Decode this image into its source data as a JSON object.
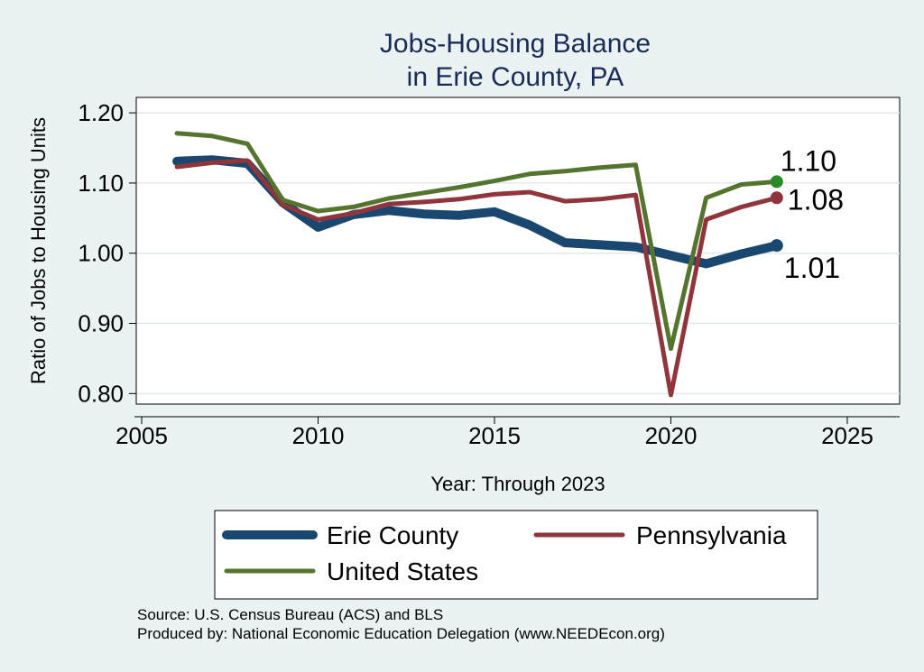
{
  "chart_data": {
    "type": "line",
    "title": [
      "Jobs-Housing Balance",
      "in Erie County, PA"
    ],
    "xlabel": "Year: Through 2023",
    "ylabel": "Ratio of Jobs to Housing Units",
    "xlim": [
      2005,
      2027
    ],
    "ylim": [
      0.785,
      1.222
    ],
    "xticks": [
      2005,
      2010,
      2015,
      2020,
      2025
    ],
    "yticks": [
      0.8,
      0.9,
      1.0,
      1.1,
      1.2
    ],
    "ytick_labels": [
      "0.80",
      "0.90",
      "1.00",
      "1.10",
      "1.20"
    ],
    "grid": "horizontal",
    "legend_position": "bottom",
    "x": [
      2006,
      2007,
      2008,
      2009,
      2010,
      2011,
      2012,
      2013,
      2014,
      2015,
      2016,
      2017,
      2018,
      2019,
      2020,
      2021,
      2022,
      2023
    ],
    "series": [
      {
        "name": "Erie County",
        "color": "#1a476f",
        "width": "thick",
        "values": [
          1.131,
          1.133,
          1.128,
          1.072,
          1.037,
          1.055,
          1.061,
          1.056,
          1.054,
          1.059,
          1.04,
          1.015,
          1.012,
          1.009,
          0.997,
          0.985,
          0.999,
          1.011
        ],
        "end_label": "1.01"
      },
      {
        "name": "Pennsylvania",
        "color": "#90353b",
        "width": "medium",
        "values": [
          1.123,
          1.129,
          1.132,
          1.069,
          1.048,
          1.057,
          1.07,
          1.073,
          1.077,
          1.084,
          1.087,
          1.074,
          1.077,
          1.083,
          0.798,
          1.048,
          1.066,
          1.079
        ],
        "end_label": "1.08"
      },
      {
        "name": "United States",
        "color": "#55752f",
        "width": "medium",
        "values": [
          1.171,
          1.167,
          1.156,
          1.076,
          1.06,
          1.066,
          1.078,
          1.086,
          1.094,
          1.103,
          1.113,
          1.117,
          1.122,
          1.126,
          0.864,
          1.079,
          1.098,
          1.102
        ],
        "end_label": "1.10",
        "marker_color": "#2a8a25"
      }
    ],
    "notes": [
      "Source: U.S. Census Bureau (ACS) and BLS",
      "Produced by: National Economic Education Delegation (www.NEEDEcon.org)"
    ]
  }
}
